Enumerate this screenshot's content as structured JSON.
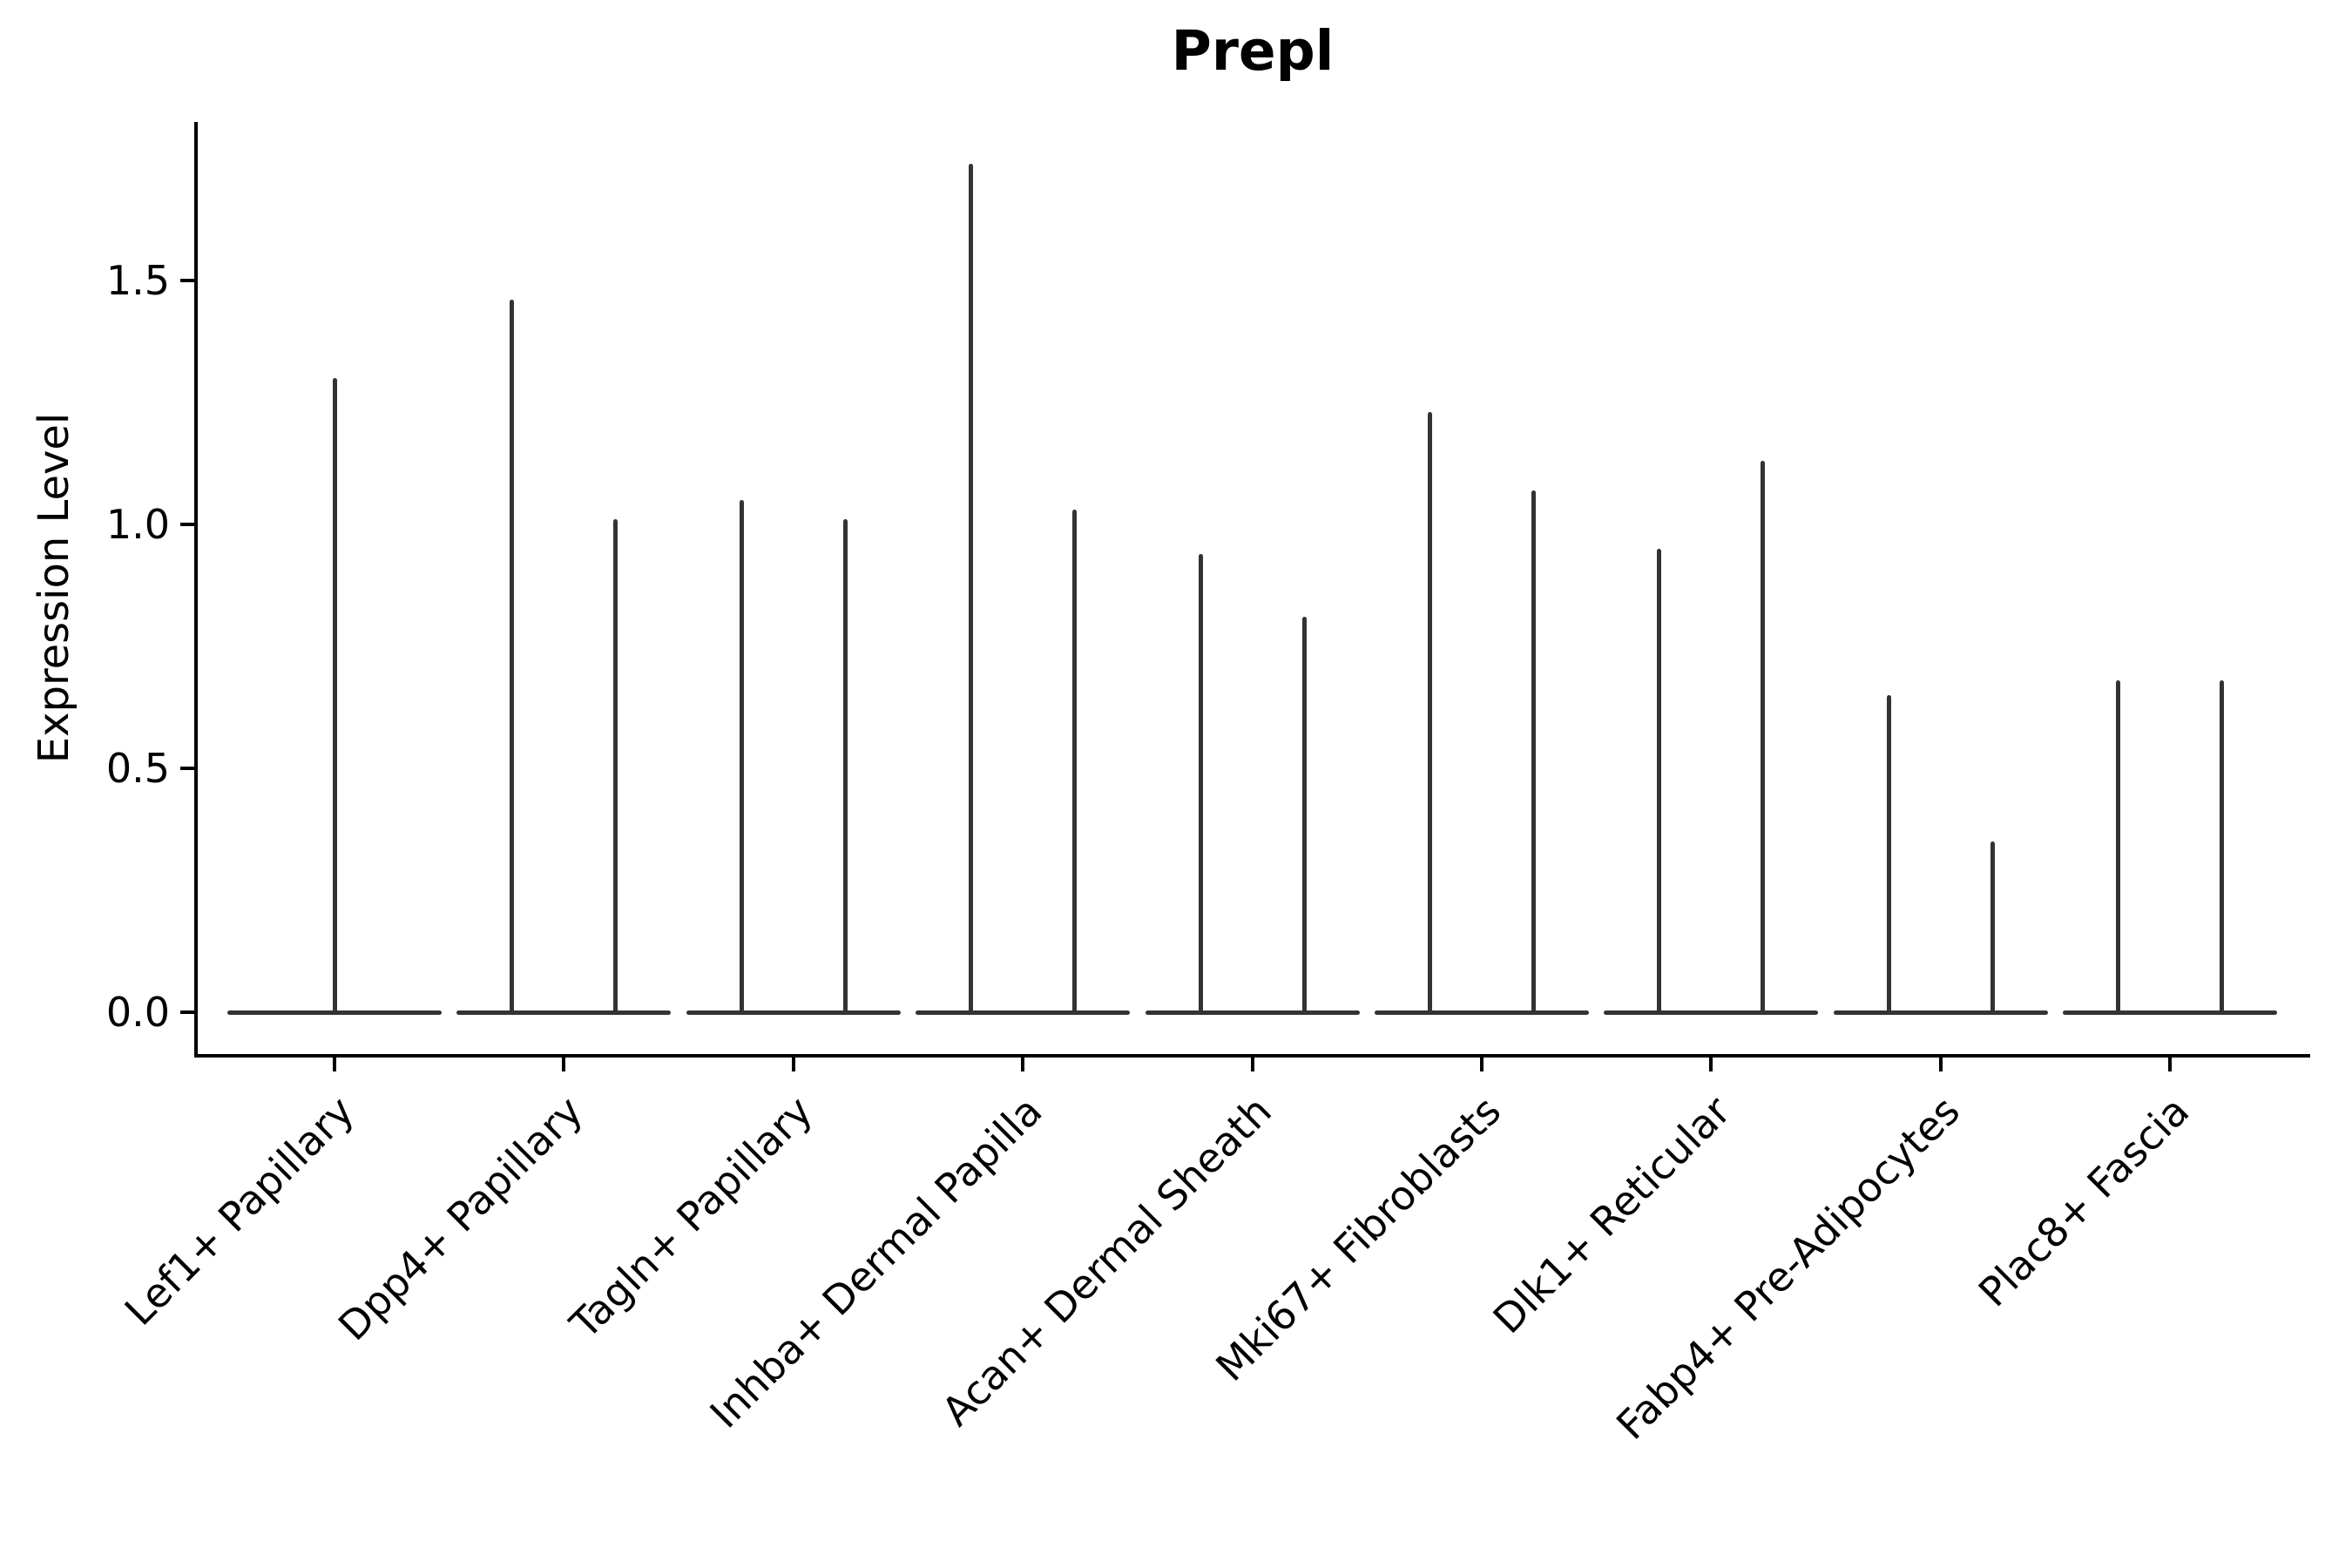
{
  "chart_data": {
    "type": "violin",
    "title": "Prepl",
    "ylabel": "Expression Level",
    "xlabel": "",
    "yticks": [
      0.0,
      0.5,
      1.0,
      1.5
    ],
    "ytick_labels": [
      "0.0",
      "0.5",
      "1.0",
      "1.5"
    ],
    "ylim": [
      -0.09,
      1.83
    ],
    "grid": false,
    "legend": "none",
    "x_tick_rotation": 45,
    "line_color": "#333333",
    "axis_color": "#000000",
    "background": "#ffffff",
    "categories": [
      "Lef1+ Papillary",
      "Dpp4+ Papillary",
      "Tagln+ Papillary",
      "Inhba+ Dermal Papilla",
      "Acan+ Dermal Sheath",
      "Mki67+ Fibroblasts",
      "Dlk1+ Reticular",
      "Fabp4+ Pre-Adipocytes",
      "Plac8+ Fascia"
    ],
    "violins": [
      {
        "category": "Lef1+ Papillary",
        "spikes": [
          {
            "dx": 0.0,
            "max": 1.3
          }
        ]
      },
      {
        "category": "Dpp4+ Papillary",
        "spikes": [
          {
            "dx": -0.226,
            "max": 1.46
          },
          {
            "dx": 0.226,
            "max": 1.01
          }
        ]
      },
      {
        "category": "Tagln+ Papillary",
        "spikes": [
          {
            "dx": -0.226,
            "max": 1.05
          },
          {
            "dx": 0.226,
            "max": 1.01
          }
        ]
      },
      {
        "category": "Inhba+ Dermal Papilla",
        "spikes": [
          {
            "dx": -0.226,
            "max": 1.74
          },
          {
            "dx": 0.226,
            "max": 1.03
          }
        ]
      },
      {
        "category": "Acan+ Dermal Sheath",
        "spikes": [
          {
            "dx": -0.226,
            "max": 0.94
          },
          {
            "dx": 0.226,
            "max": 0.81
          }
        ]
      },
      {
        "category": "Mki67+ Fibroblasts",
        "spikes": [
          {
            "dx": -0.226,
            "max": 1.23
          },
          {
            "dx": 0.226,
            "max": 1.07
          }
        ]
      },
      {
        "category": "Dlk1+ Reticular",
        "spikes": [
          {
            "dx": -0.226,
            "max": 0.95
          },
          {
            "dx": 0.226,
            "max": 1.13
          }
        ]
      },
      {
        "category": "Fabp4+ Pre-Adipocytes",
        "spikes": [
          {
            "dx": -0.226,
            "max": 0.65
          },
          {
            "dx": 0.226,
            "max": 0.35
          }
        ]
      },
      {
        "category": "Plac8+ Fascia",
        "spikes": [
          {
            "dx": -0.226,
            "max": 0.68
          },
          {
            "dx": 0.226,
            "max": 0.68
          }
        ]
      }
    ],
    "baseline_value": 0.0
  }
}
